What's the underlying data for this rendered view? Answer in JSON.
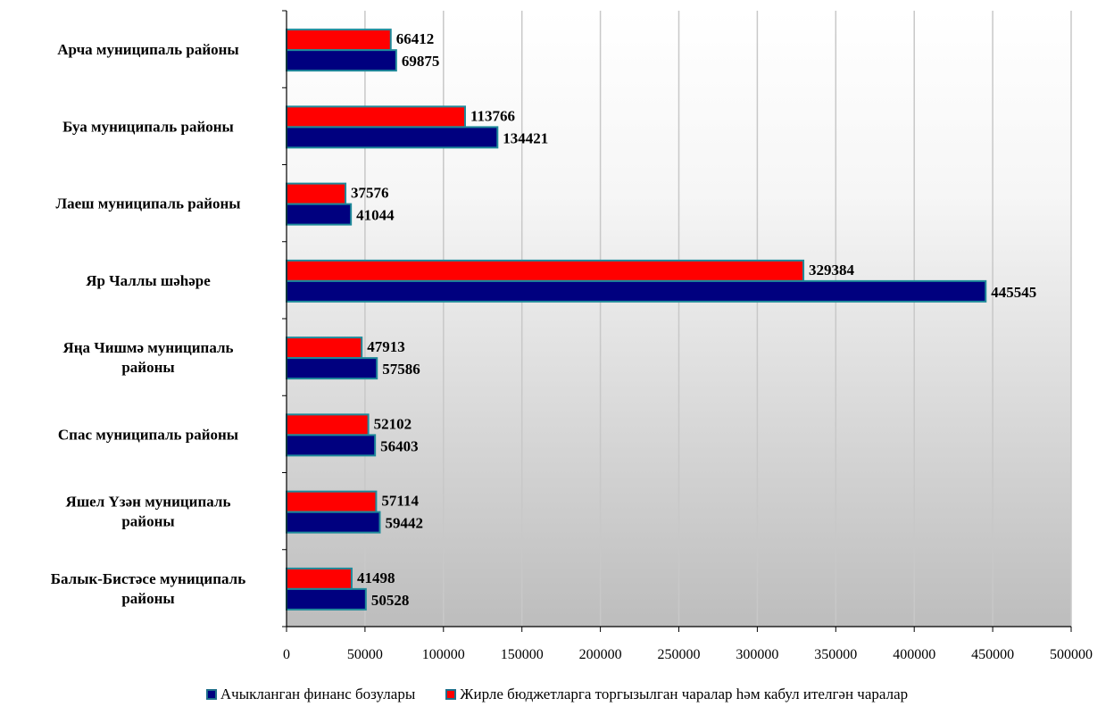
{
  "chart_data": {
    "type": "bar",
    "orientation": "horizontal",
    "categories": [
      [
        "Арча муниципаль районы"
      ],
      [
        "Буа муниципаль районы"
      ],
      [
        "Лаеш муниципаль районы"
      ],
      [
        "Яр Чаллы шәһәре"
      ],
      [
        "Яңа Чишмә муниципаль",
        "районы"
      ],
      [
        "Спас муниципаль районы"
      ],
      [
        "Яшел Үзән муниципаль",
        "районы"
      ],
      [
        "Балык-Бистәсе муниципаль",
        "районы"
      ]
    ],
    "series": [
      {
        "name": "Жирле бюджетларга торгызылган чаралар һәм кабул ителгән чаралар",
        "color": "#ff0000",
        "values": [
          66412,
          113766,
          37576,
          329384,
          47913,
          52102,
          57114,
          41498
        ],
        "labels": [
          "66412",
          "113766",
          "37576",
          "329384",
          "47913",
          "52102",
          "57114",
          "41498"
        ]
      },
      {
        "name": "Ачыкланган финанс бозулары",
        "color": "#00007f",
        "values": [
          69875,
          134421,
          41044,
          445545,
          57586,
          56403,
          59442,
          50528
        ],
        "labels": [
          "69875",
          "134421",
          "41044",
          "445545",
          "57586",
          "56403",
          "59442",
          "50528"
        ]
      }
    ],
    "xlim": [
      0,
      500000
    ],
    "xticks": [
      "0",
      "50000",
      "100000",
      "150000",
      "200000",
      "250000",
      "300000",
      "350000",
      "400000",
      "450000",
      "500000"
    ],
    "grid": true,
    "legend_position": "bottom"
  },
  "legend": {
    "items": [
      {
        "label": "Ачыкланган финанс бозулары",
        "color": "#00007f"
      },
      {
        "label": "Жирле бюджетларга торгызылган чаралар һәм кабул ителгән чаралар",
        "color": "#ff0000"
      }
    ]
  }
}
